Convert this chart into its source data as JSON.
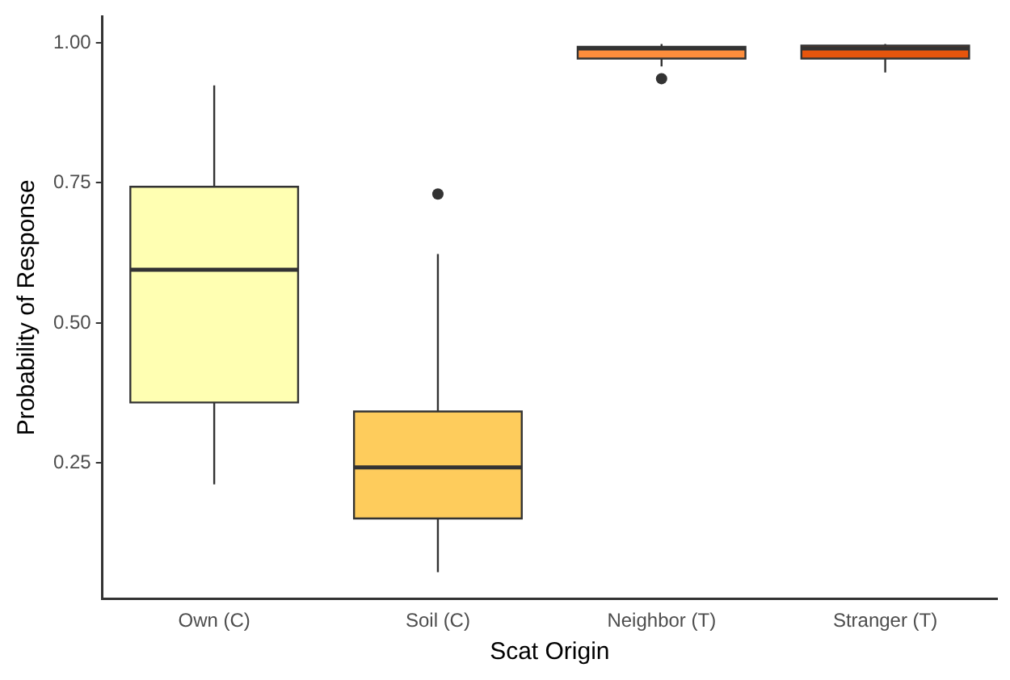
{
  "chart_data": {
    "type": "box",
    "xlabel": "Scat Origin",
    "ylabel": "Probability of Response",
    "categories": [
      "Own (C)",
      "Soil (C)",
      "Neighbor (T)",
      "Stranger (T)"
    ],
    "colors": [
      "#ffffb2",
      "#fecc5c",
      "#fd8d3c",
      "#e6550d"
    ],
    "boxes": [
      {
        "low": 0.212,
        "q1": 0.358,
        "median": 0.595,
        "q3": 0.743,
        "high": 0.924
      },
      {
        "low": 0.055,
        "q1": 0.151,
        "median": 0.242,
        "q3": 0.342,
        "high": 0.623,
        "outliers": [
          0.73
        ]
      },
      {
        "low": 0.958,
        "q1": 0.972,
        "median": 0.99,
        "q3": 0.993,
        "high": 0.998,
        "outliers": [
          0.936
        ]
      },
      {
        "low": 0.947,
        "q1": 0.972,
        "median": 0.99,
        "q3": 0.995,
        "high": 0.998
      }
    ],
    "ylim": [
      0.008,
      1.047
    ],
    "yticks": [
      {
        "value": 0.25,
        "label": "0.25"
      },
      {
        "value": 0.5,
        "label": "0.50"
      },
      {
        "value": 0.75,
        "label": "0.75"
      },
      {
        "value": 1,
        "label": "1.00"
      }
    ],
    "grid": false,
    "legend": false
  }
}
